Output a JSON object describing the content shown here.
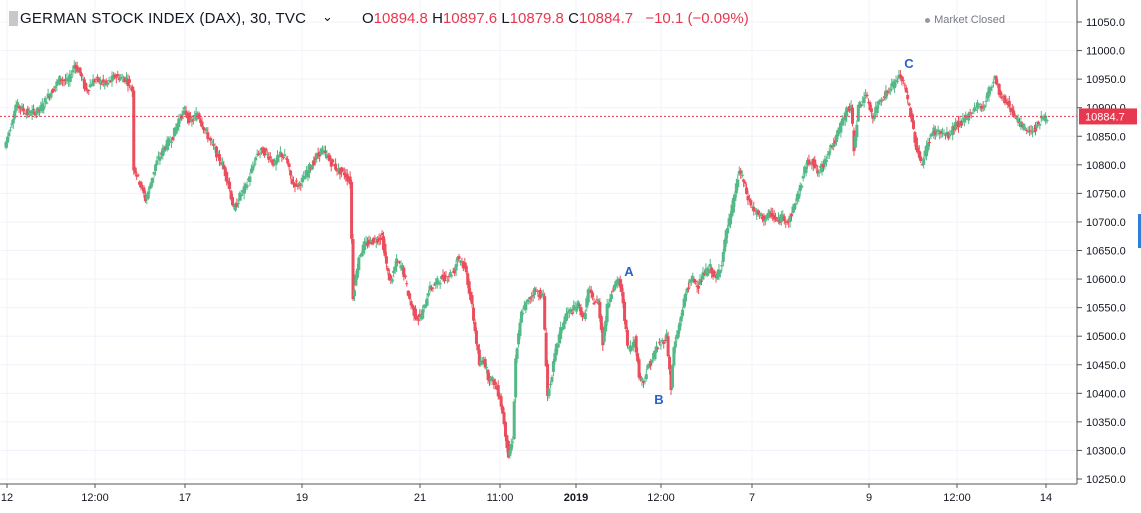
{
  "header": {
    "symbol_title": "GERMAN STOCK INDEX (DAX), 30, TVC",
    "ohlc": {
      "o_label": "O",
      "o_value": "10894.8",
      "h_label": "H",
      "h_value": "10897.6",
      "l_label": "L",
      "l_value": "10879.8",
      "c_label": "C",
      "c_value": "10884.7",
      "change": "−10.1 (−0.09%)"
    },
    "market_status": "Market Closed"
  },
  "colors": {
    "up": "#53b987",
    "down": "#eb4d5c",
    "grid": "#f0f3fa",
    "axis": "#555555",
    "last_price": "#e8384f",
    "annotation": "#2962c8"
  },
  "chart_data": {
    "type": "candlestick",
    "title": "GERMAN STOCK INDEX (DAX), 30, TVC",
    "xlabel": "",
    "ylabel": "",
    "ylim": [
      10240,
      11060
    ],
    "y_ticks": [
      10250.0,
      10300.0,
      10350.0,
      10400.0,
      10450.0,
      10500.0,
      10550.0,
      10600.0,
      10650.0,
      10700.0,
      10750.0,
      10800.0,
      10850.0,
      10900.0,
      10950.0,
      11000.0,
      11050.0
    ],
    "x_ticks": [
      "12",
      "12:00",
      "17",
      "19",
      "21",
      "11:00",
      "2019",
      "12:00",
      "7",
      "9",
      "12:00",
      "14"
    ],
    "grid": true,
    "last_price": "10884.7",
    "annotations": [
      "A",
      "B",
      "C"
    ],
    "close_path": [
      [
        0,
        10830
      ],
      [
        8,
        10905
      ],
      [
        16,
        10890
      ],
      [
        24,
        10895
      ],
      [
        30,
        10920
      ],
      [
        38,
        10950
      ],
      [
        44,
        10945
      ],
      [
        48,
        10975
      ],
      [
        52,
        10960
      ],
      [
        56,
        10930
      ],
      [
        62,
        10950
      ],
      [
        70,
        10940
      ],
      [
        76,
        10955
      ],
      [
        84,
        10950
      ],
      [
        88,
        10930
      ],
      [
        89,
        10795
      ],
      [
        93,
        10770
      ],
      [
        97,
        10740
      ],
      [
        100,
        10760
      ],
      [
        104,
        10800
      ],
      [
        110,
        10830
      ],
      [
        116,
        10850
      ],
      [
        120,
        10880
      ],
      [
        124,
        10895
      ],
      [
        128,
        10875
      ],
      [
        133,
        10890
      ],
      [
        138,
        10860
      ],
      [
        142,
        10840
      ],
      [
        146,
        10820
      ],
      [
        150,
        10800
      ],
      [
        154,
        10770
      ],
      [
        158,
        10720
      ],
      [
        162,
        10745
      ],
      [
        166,
        10760
      ],
      [
        170,
        10790
      ],
      [
        174,
        10820
      ],
      [
        178,
        10825
      ],
      [
        182,
        10815
      ],
      [
        186,
        10800
      ],
      [
        190,
        10820
      ],
      [
        194,
        10810
      ],
      [
        196,
        10790
      ],
      [
        198,
        10770
      ],
      [
        202,
        10765
      ],
      [
        206,
        10775
      ],
      [
        210,
        10795
      ],
      [
        214,
        10810
      ],
      [
        218,
        10825
      ],
      [
        222,
        10815
      ],
      [
        226,
        10800
      ],
      [
        230,
        10790
      ],
      [
        234,
        10785
      ],
      [
        238,
        10770
      ],
      [
        240,
        10570
      ],
      [
        244,
        10640
      ],
      [
        248,
        10660
      ],
      [
        252,
        10665
      ],
      [
        256,
        10670
      ],
      [
        260,
        10675
      ],
      [
        262,
        10640
      ],
      [
        264,
        10610
      ],
      [
        266,
        10595
      ],
      [
        270,
        10630
      ],
      [
        274,
        10620
      ],
      [
        278,
        10575
      ],
      [
        280,
        10555
      ],
      [
        283,
        10535
      ],
      [
        286,
        10530
      ],
      [
        289,
        10550
      ],
      [
        292,
        10580
      ],
      [
        296,
        10590
      ],
      [
        300,
        10600
      ],
      [
        305,
        10605
      ],
      [
        310,
        10615
      ],
      [
        312,
        10640
      ],
      [
        315,
        10630
      ],
      [
        318,
        10610
      ],
      [
        322,
        10550
      ],
      [
        324,
        10510
      ],
      [
        327,
        10450
      ],
      [
        330,
        10460
      ],
      [
        333,
        10430
      ],
      [
        337,
        10420
      ],
      [
        341,
        10395
      ],
      [
        344,
        10350
      ],
      [
        347,
        10290
      ],
      [
        350,
        10320
      ],
      [
        352,
        10460
      ],
      [
        356,
        10540
      ],
      [
        360,
        10560
      ],
      [
        365,
        10580
      ],
      [
        371,
        10570
      ],
      [
        374,
        10395
      ],
      [
        376,
        10420
      ],
      [
        380,
        10480
      ],
      [
        383,
        10510
      ],
      [
        387,
        10540
      ],
      [
        391,
        10545
      ],
      [
        395,
        10555
      ],
      [
        399,
        10530
      ],
      [
        402,
        10580
      ],
      [
        406,
        10560
      ],
      [
        409,
        10560
      ],
      [
        412,
        10490
      ],
      [
        415,
        10550
      ],
      [
        418,
        10580
      ],
      [
        421,
        10590
      ],
      [
        423,
        10600
      ],
      [
        426,
        10560
      ],
      [
        429,
        10480
      ],
      [
        432,
        10480
      ],
      [
        434,
        10500
      ],
      [
        437,
        10430
      ],
      [
        440,
        10420
      ],
      [
        443,
        10445
      ],
      [
        446,
        10460
      ],
      [
        449,
        10480
      ],
      [
        453,
        10490
      ],
      [
        456,
        10500
      ],
      [
        459,
        10410
      ],
      [
        461,
        10480
      ],
      [
        464,
        10510
      ],
      [
        467,
        10550
      ],
      [
        470,
        10585
      ],
      [
        474,
        10600
      ],
      [
        478,
        10590
      ],
      [
        482,
        10610
      ],
      [
        486,
        10620
      ],
      [
        490,
        10600
      ],
      [
        494,
        10630
      ],
      [
        497,
        10680
      ],
      [
        500,
        10710
      ],
      [
        503,
        10750
      ],
      [
        506,
        10790
      ],
      [
        509,
        10770
      ],
      [
        512,
        10740
      ],
      [
        516,
        10720
      ],
      [
        520,
        10710
      ],
      [
        524,
        10705
      ],
      [
        528,
        10715
      ],
      [
        532,
        10700
      ],
      [
        536,
        10710
      ],
      [
        540,
        10700
      ],
      [
        544,
        10730
      ],
      [
        548,
        10760
      ],
      [
        552,
        10800
      ],
      [
        556,
        10810
      ],
      [
        560,
        10785
      ],
      [
        564,
        10800
      ],
      [
        568,
        10830
      ],
      [
        572,
        10840
      ],
      [
        576,
        10870
      ],
      [
        580,
        10895
      ],
      [
        583,
        10900
      ],
      [
        585,
        10830
      ],
      [
        588,
        10900
      ],
      [
        592,
        10920
      ],
      [
        595,
        10910
      ],
      [
        598,
        10880
      ],
      [
        602,
        10910
      ],
      [
        605,
        10920
      ],
      [
        609,
        10930
      ],
      [
        613,
        10945
      ],
      [
        617,
        10955
      ],
      [
        620,
        10935
      ],
      [
        624,
        10890
      ],
      [
        628,
        10830
      ],
      [
        632,
        10800
      ],
      [
        636,
        10840
      ],
      [
        640,
        10860
      ],
      [
        645,
        10855
      ],
      [
        650,
        10850
      ],
      [
        655,
        10870
      ],
      [
        660,
        10875
      ],
      [
        665,
        10890
      ],
      [
        670,
        10905
      ],
      [
        674,
        10900
      ],
      [
        678,
        10930
      ],
      [
        682,
        10955
      ],
      [
        686,
        10920
      ],
      [
        690,
        10910
      ],
      [
        694,
        10895
      ],
      [
        698,
        10875
      ],
      [
        702,
        10865
      ],
      [
        706,
        10860
      ],
      [
        710,
        10865
      ],
      [
        714,
        10880
      ],
      [
        718,
        10885
      ]
    ]
  }
}
